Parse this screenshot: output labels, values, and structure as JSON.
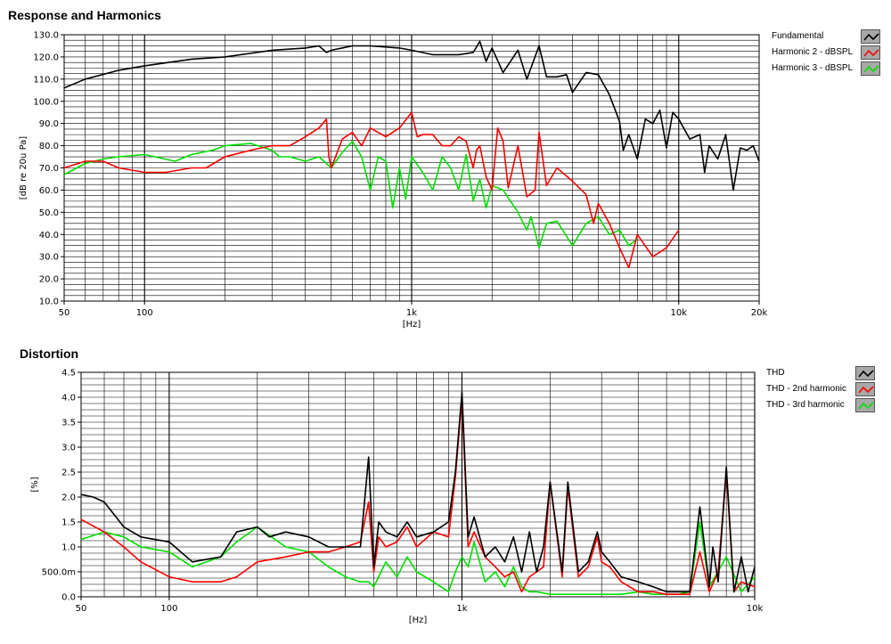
{
  "chart_data": [
    {
      "type": "line",
      "title": "Response and Harmonics",
      "xlabel": "[Hz]",
      "ylabel": "[dB re 20u Pa]",
      "xscale": "log",
      "xlim": [
        50,
        20000
      ],
      "ylim": [
        10,
        130
      ],
      "xticks": [
        {
          "v": 50,
          "label": "50"
        },
        {
          "v": 100,
          "label": "100"
        },
        {
          "v": 1000,
          "label": "1k"
        },
        {
          "v": 10000,
          "label": "10k"
        },
        {
          "v": 20000,
          "label": "20k"
        }
      ],
      "yticks": [
        {
          "v": 10,
          "label": "10.0"
        },
        {
          "v": 20,
          "label": "20.0"
        },
        {
          "v": 30,
          "label": "30.0"
        },
        {
          "v": 40,
          "label": "40.0"
        },
        {
          "v": 50,
          "label": "50.0"
        },
        {
          "v": 60,
          "label": "60.0"
        },
        {
          "v": 70,
          "label": "70.0"
        },
        {
          "v": 80,
          "label": "80.0"
        },
        {
          "v": 90,
          "label": "90.0"
        },
        {
          "v": 100,
          "label": "100.0"
        },
        {
          "v": 110,
          "label": "110.0"
        },
        {
          "v": 120,
          "label": "120.0"
        },
        {
          "v": 130,
          "label": "130.0"
        }
      ],
      "grid": true,
      "legend_position": "right",
      "series": [
        {
          "name": "Fundamental",
          "color": "#000000",
          "x": [
            50,
            60,
            80,
            100,
            150,
            200,
            300,
            400,
            450,
            480,
            500,
            600,
            700,
            900,
            1000,
            1200,
            1500,
            1700,
            1800,
            1900,
            2000,
            2200,
            2500,
            2700,
            3000,
            3200,
            3500,
            3800,
            4000,
            4500,
            5000,
            5500,
            6000,
            6200,
            6500,
            7000,
            7500,
            8000,
            8500,
            9000,
            9500,
            10000,
            11000,
            12000,
            12500,
            13000,
            14000,
            15000,
            16000,
            17000,
            18000,
            19000,
            20000
          ],
          "y": [
            106,
            110,
            114,
            116,
            119,
            120,
            123,
            124,
            125,
            122,
            123,
            125,
            125,
            124,
            123,
            121,
            121,
            122,
            127,
            118,
            124,
            113,
            123,
            110,
            125,
            111,
            111,
            112,
            104,
            113,
            112,
            103,
            91,
            78,
            85,
            74,
            92,
            90,
            96,
            79,
            95,
            92,
            83,
            85,
            68,
            80,
            74,
            85,
            60,
            79,
            78,
            80,
            73
          ]
        },
        {
          "name": "Harmonic 2 - dBSPL",
          "color": "#ff0000",
          "x": [
            50,
            60,
            70,
            80,
            100,
            120,
            150,
            170,
            200,
            250,
            300,
            350,
            400,
            450,
            480,
            490,
            500,
            550,
            600,
            650,
            700,
            800,
            900,
            1000,
            1050,
            1100,
            1200,
            1300,
            1400,
            1500,
            1600,
            1700,
            1750,
            1800,
            1900,
            2000,
            2100,
            2200,
            2300,
            2500,
            2700,
            2900,
            3000,
            3200,
            3500,
            4000,
            4500,
            4800,
            5000,
            5500,
            6000,
            6500,
            7000,
            8000,
            9000,
            10000
          ],
          "y": [
            70,
            73,
            73,
            70,
            68,
            68,
            70,
            70,
            75,
            78,
            80,
            80,
            84,
            88,
            92,
            75,
            70,
            83,
            86,
            80,
            88,
            84,
            88,
            95,
            84,
            85,
            85,
            80,
            80,
            84,
            82,
            70,
            78,
            80,
            66,
            60,
            88,
            82,
            61,
            80,
            57,
            60,
            86,
            62,
            70,
            64,
            58,
            45,
            54,
            45,
            34,
            25,
            40,
            30,
            34,
            42
          ]
        },
        {
          "name": "Harmonic 3 - dBSPL",
          "color": "#00e000",
          "x": [
            50,
            60,
            70,
            80,
            100,
            130,
            150,
            180,
            200,
            250,
            300,
            320,
            350,
            400,
            450,
            500,
            550,
            600,
            650,
            700,
            750,
            800,
            850,
            900,
            950,
            1000,
            1100,
            1200,
            1300,
            1400,
            1500,
            1600,
            1700,
            1800,
            1900,
            2000,
            2200,
            2500,
            2700,
            2800,
            3000,
            3200,
            3500,
            4000,
            4500,
            5000,
            5500,
            6000,
            6500,
            7000
          ],
          "y": [
            67,
            72,
            74,
            75,
            76,
            73,
            76,
            78,
            80,
            81,
            78,
            75,
            75,
            73,
            75,
            70,
            77,
            82,
            75,
            60,
            75,
            73,
            52,
            70,
            56,
            75,
            68,
            60,
            75,
            70,
            60,
            76,
            55,
            65,
            52,
            62,
            60,
            50,
            42,
            48,
            34,
            45,
            46,
            35,
            45,
            48,
            40,
            42,
            35,
            38
          ]
        }
      ]
    },
    {
      "type": "line",
      "title": "Distortion",
      "xlabel": "[Hz]",
      "ylabel": "[%]",
      "xscale": "log",
      "xlim": [
        50,
        10000
      ],
      "ylim": [
        0,
        4.5
      ],
      "xticks": [
        {
          "v": 50,
          "label": "50"
        },
        {
          "v": 100,
          "label": "100"
        },
        {
          "v": 1000,
          "label": "1k"
        },
        {
          "v": 10000,
          "label": "10k"
        }
      ],
      "yticks": [
        {
          "v": 0,
          "label": "0.0"
        },
        {
          "v": 0.5,
          "label": "500.0m"
        },
        {
          "v": 1,
          "label": "1.0"
        },
        {
          "v": 1.5,
          "label": "1.5"
        },
        {
          "v": 2,
          "label": "2.0"
        },
        {
          "v": 2.5,
          "label": "2.5"
        },
        {
          "v": 3,
          "label": "3.0"
        },
        {
          "v": 3.5,
          "label": "3.5"
        },
        {
          "v": 4,
          "label": "4.0"
        },
        {
          "v": 4.5,
          "label": "4.5"
        }
      ],
      "grid": true,
      "legend_position": "right",
      "series": [
        {
          "name": "THD",
          "color": "#000000",
          "x": [
            50,
            55,
            60,
            70,
            80,
            100,
            120,
            150,
            170,
            200,
            220,
            250,
            300,
            350,
            400,
            450,
            480,
            500,
            520,
            550,
            600,
            650,
            700,
            800,
            900,
            950,
            1000,
            1050,
            1100,
            1200,
            1300,
            1400,
            1500,
            1600,
            1700,
            1800,
            1900,
            2000,
            2200,
            2300,
            2500,
            2700,
            2900,
            3000,
            3200,
            3500,
            4000,
            4500,
            5000,
            5500,
            6000,
            6500,
            7000,
            7200,
            7500,
            8000,
            8500,
            9000,
            9500,
            10000
          ],
          "y": [
            2.05,
            2.0,
            1.9,
            1.4,
            1.2,
            1.1,
            0.7,
            0.8,
            1.3,
            1.4,
            1.2,
            1.3,
            1.2,
            1.0,
            1.0,
            1.0,
            2.8,
            0.6,
            1.5,
            1.3,
            1.2,
            1.5,
            1.2,
            1.3,
            1.5,
            2.5,
            4.1,
            1.2,
            1.6,
            0.8,
            1.0,
            0.7,
            1.2,
            0.5,
            1.3,
            0.5,
            1.0,
            2.3,
            0.5,
            2.3,
            0.5,
            0.7,
            1.3,
            0.9,
            0.7,
            0.4,
            0.3,
            0.2,
            0.1,
            0.1,
            0.1,
            1.8,
            0.2,
            1.0,
            0.3,
            2.6,
            0.1,
            0.8,
            0.1,
            0.6
          ]
        },
        {
          "name": "THD - 2nd harmonic",
          "color": "#ff0000",
          "x": [
            50,
            60,
            70,
            80,
            100,
            120,
            150,
            170,
            200,
            250,
            300,
            350,
            400,
            450,
            480,
            500,
            520,
            550,
            600,
            650,
            700,
            800,
            900,
            950,
            1000,
            1050,
            1100,
            1200,
            1300,
            1400,
            1500,
            1600,
            1700,
            1800,
            1900,
            2000,
            2200,
            2300,
            2500,
            2700,
            2900,
            3000,
            3200,
            3500,
            4000,
            4500,
            5000,
            5500,
            6000,
            6500,
            7000,
            7500,
            8000,
            8500,
            9000,
            10000
          ],
          "y": [
            1.55,
            1.3,
            1.0,
            0.7,
            0.4,
            0.3,
            0.3,
            0.4,
            0.7,
            0.8,
            0.9,
            0.9,
            1.0,
            1.1,
            1.9,
            0.5,
            1.2,
            1.0,
            1.1,
            1.4,
            1.0,
            1.3,
            1.2,
            2.4,
            4.0,
            1.0,
            1.3,
            0.8,
            0.6,
            0.4,
            0.5,
            0.1,
            0.4,
            0.5,
            0.6,
            2.3,
            0.4,
            2.2,
            0.4,
            0.6,
            1.2,
            0.7,
            0.6,
            0.3,
            0.1,
            0.1,
            0.05,
            0.05,
            0.05,
            0.9,
            0.1,
            0.5,
            2.5,
            0.1,
            0.3,
            0.2
          ]
        },
        {
          "name": "THD - 3rd harmonic",
          "color": "#00e000",
          "x": [
            50,
            60,
            70,
            80,
            100,
            120,
            150,
            170,
            200,
            250,
            300,
            350,
            400,
            450,
            480,
            500,
            550,
            600,
            650,
            700,
            800,
            900,
            950,
            1000,
            1050,
            1100,
            1200,
            1300,
            1400,
            1500,
            1600,
            1700,
            1800,
            2000,
            2200,
            2500,
            3000,
            3500,
            4000,
            4500,
            5000,
            5500,
            6000,
            6500,
            7000,
            8000,
            9000,
            10000
          ],
          "y": [
            1.15,
            1.3,
            1.2,
            1.0,
            0.9,
            0.6,
            0.8,
            1.1,
            1.4,
            1.0,
            0.9,
            0.6,
            0.4,
            0.3,
            0.3,
            0.2,
            0.7,
            0.4,
            0.8,
            0.5,
            0.3,
            0.1,
            0.5,
            0.8,
            0.6,
            1.1,
            0.3,
            0.5,
            0.2,
            0.6,
            0.2,
            0.1,
            0.1,
            0.05,
            0.05,
            0.05,
            0.05,
            0.05,
            0.1,
            0.05,
            0.05,
            0.05,
            0.1,
            1.5,
            0.2,
            0.8,
            0.1,
            0.4
          ]
        }
      ]
    }
  ]
}
